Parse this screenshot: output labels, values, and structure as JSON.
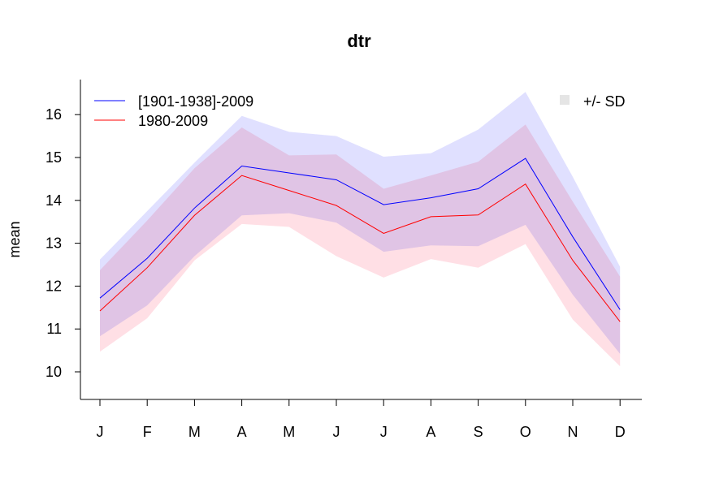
{
  "chart_data": {
    "type": "line",
    "title": "dtr",
    "xlabel": "",
    "ylabel": "mean",
    "categories": [
      "J",
      "F",
      "M",
      "A",
      "M",
      "J",
      "J",
      "A",
      "S",
      "O",
      "N",
      "D"
    ],
    "yticks": [
      10,
      11,
      12,
      13,
      14,
      15,
      16
    ],
    "ylim": [
      9.3,
      16.8
    ],
    "series": [
      {
        "name": "[1901-1938]-2009",
        "color": "#0000ff",
        "values": [
          11.72,
          12.65,
          13.82,
          14.8,
          14.64,
          14.48,
          13.9,
          14.06,
          14.27,
          14.98,
          13.15,
          11.45
        ],
        "sd_upper": [
          12.62,
          13.75,
          14.88,
          15.97,
          15.6,
          15.5,
          15.02,
          15.1,
          15.65,
          16.53,
          14.55,
          12.45
        ],
        "sd_lower": [
          10.83,
          11.55,
          12.7,
          13.65,
          13.7,
          13.48,
          12.8,
          12.95,
          12.93,
          13.43,
          11.8,
          10.42
        ],
        "band_color": "#e0e0ff"
      },
      {
        "name": "1980-2009",
        "color": "#ff0000",
        "values": [
          11.42,
          12.43,
          13.65,
          14.58,
          14.23,
          13.88,
          13.23,
          13.62,
          13.66,
          14.38,
          12.6,
          11.17
        ],
        "sd_upper": [
          12.37,
          13.53,
          14.75,
          15.7,
          15.05,
          15.07,
          14.27,
          14.58,
          14.9,
          15.77,
          13.97,
          12.22
        ],
        "sd_lower": [
          10.47,
          11.25,
          12.6,
          13.45,
          13.38,
          12.7,
          12.2,
          12.63,
          12.43,
          12.98,
          11.22,
          10.13
        ],
        "band_color": "#ffdfe5"
      }
    ],
    "legend": {
      "placement": "top-left",
      "sd_label": "+/- SD",
      "sd_placement": "top-right",
      "sd_color": "#e5e5e5"
    },
    "grid": false
  }
}
